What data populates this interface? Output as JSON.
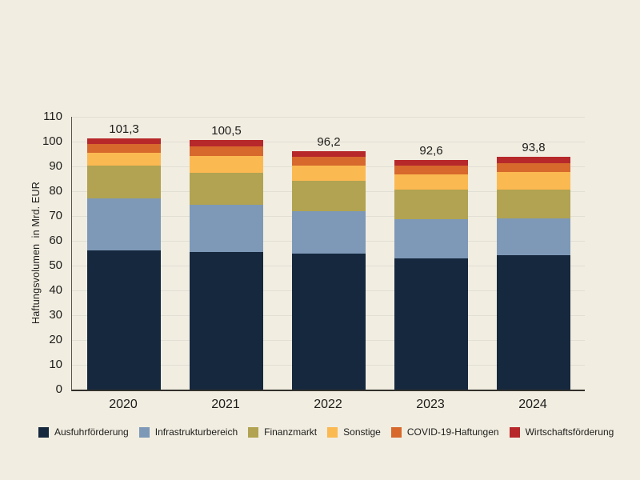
{
  "chart_data": {
    "type": "bar",
    "stacked": true,
    "title": "",
    "xlabel": "",
    "ylabel": "Haftungsvolumen  in Mrd. EUR",
    "ylim": [
      0,
      110
    ],
    "ytick_step": 10,
    "ytick_labels": [
      "0",
      "10",
      "20",
      "30",
      "40",
      "50",
      "60",
      "70",
      "80",
      "90",
      "100",
      "110"
    ],
    "grid": true,
    "legend_position": "bottom",
    "categories": [
      "2020",
      "2021",
      "2022",
      "2023",
      "2024"
    ],
    "series": [
      {
        "name": "Ausfuhrförderung",
        "color": "#16283E",
        "values": [
          56.1,
          55.5,
          54.9,
          52.8,
          54.1
        ]
      },
      {
        "name": "Infrastrukturbereich",
        "color": "#7E99B7",
        "values": [
          21.1,
          19.0,
          17.0,
          15.9,
          14.8
        ]
      },
      {
        "name": "Finanzmarkt",
        "color": "#B1A351",
        "values": [
          13.0,
          13.0,
          12.4,
          12.0,
          11.8
        ]
      },
      {
        "name": "Sonstige",
        "color": "#FBB951",
        "values": [
          5.2,
          6.7,
          6.1,
          6.0,
          7.0
        ]
      },
      {
        "name": "COVID-19-Haftungen",
        "color": "#D7692D",
        "values": [
          3.7,
          3.8,
          3.5,
          3.7,
          3.6
        ]
      },
      {
        "name": "Wirtschaftsförderung",
        "color": "#B7282B",
        "values": [
          2.2,
          2.5,
          2.3,
          2.2,
          2.5
        ]
      }
    ],
    "totals": [
      101.3,
      100.5,
      96.2,
      92.6,
      93.8
    ],
    "totals_labels": [
      "101,3",
      "100,5",
      "96,2",
      "92,6",
      "93,8"
    ]
  },
  "colors": {
    "background": "#F1EDE1",
    "gridline": "#E1DED4",
    "axis_y": "#55534C",
    "axis_x": "#33312C",
    "text": "#1D1D1B"
  }
}
